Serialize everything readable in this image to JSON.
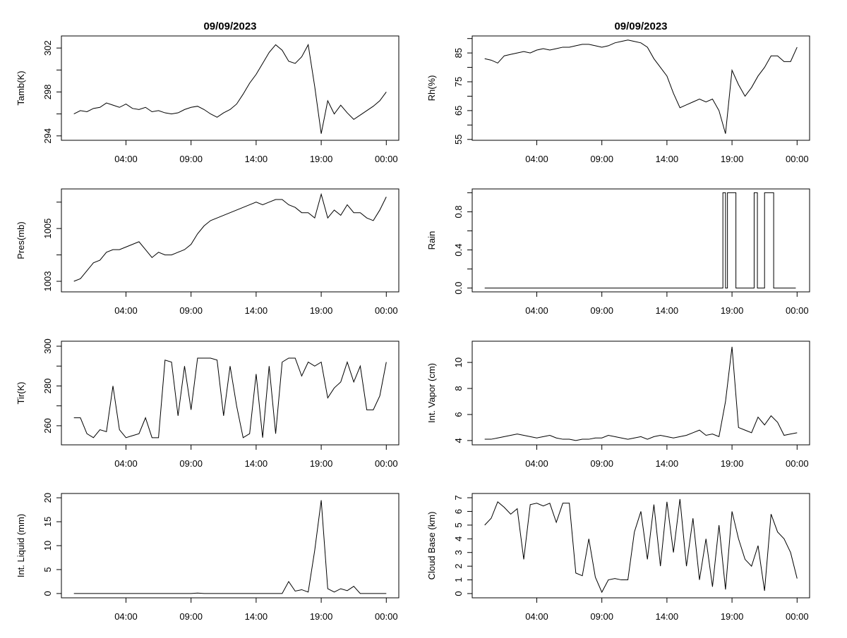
{
  "titles": [
    "09/09/2023",
    "09/09/2023"
  ],
  "x_tick_labels": [
    "04:00",
    "09:00",
    "14:00",
    "19:00",
    "00:00"
  ],
  "x_tick_values": [
    "04:00",
    "09:00",
    "14:00",
    "19:00",
    "24:00"
  ],
  "xlim": [
    "00:00",
    "24:00"
  ],
  "line_color": "#000000",
  "chart_data": [
    {
      "type": "line",
      "column": "left",
      "ylabel": "Tamb(K)",
      "ylim": [
        293.6,
        303.1
      ],
      "yticks": [
        294,
        296,
        298,
        300,
        302
      ],
      "ytick_labels": {
        "294": "294",
        "298": "298",
        "302": "302"
      },
      "x": [
        "00:00",
        "00:30",
        "01:00",
        "01:30",
        "02:00",
        "02:30",
        "03:00",
        "03:30",
        "04:00",
        "04:30",
        "05:00",
        "05:30",
        "06:00",
        "06:30",
        "07:00",
        "07:30",
        "08:00",
        "08:30",
        "09:00",
        "09:30",
        "10:00",
        "10:30",
        "11:00",
        "11:30",
        "12:00",
        "12:30",
        "13:00",
        "13:30",
        "14:00",
        "14:30",
        "15:00",
        "15:30",
        "16:00",
        "16:30",
        "17:00",
        "17:30",
        "18:00",
        "18:30",
        "19:00",
        "19:30",
        "20:00",
        "20:30",
        "21:00",
        "21:30",
        "22:00",
        "22:30",
        "23:00",
        "23:30",
        "24:00"
      ],
      "values": [
        296.0,
        296.3,
        296.2,
        296.5,
        296.6,
        297.0,
        296.8,
        296.6,
        296.9,
        296.5,
        296.4,
        296.6,
        296.2,
        296.3,
        296.1,
        296.0,
        296.1,
        296.4,
        296.6,
        296.7,
        296.4,
        296.0,
        295.7,
        296.1,
        296.4,
        296.9,
        297.8,
        298.8,
        299.6,
        300.6,
        301.6,
        302.3,
        301.8,
        300.8,
        300.6,
        301.2,
        302.3,
        298.5,
        294.2,
        297.2,
        296.0,
        296.8,
        296.1,
        295.5,
        295.9,
        296.3,
        296.7,
        297.2,
        298.0
      ]
    },
    {
      "type": "line",
      "column": "right",
      "ylabel": "Rh(%)",
      "ylim": [
        54.7,
        90.9
      ],
      "yticks": [
        55,
        60,
        65,
        70,
        75,
        80,
        85,
        90
      ],
      "ytick_labels": {
        "55": "55",
        "65": "65",
        "75": "75",
        "85": "85"
      },
      "x": [
        "00:00",
        "00:30",
        "01:00",
        "01:30",
        "02:00",
        "02:30",
        "03:00",
        "03:30",
        "04:00",
        "04:30",
        "05:00",
        "05:30",
        "06:00",
        "06:30",
        "07:00",
        "07:30",
        "08:00",
        "08:30",
        "09:00",
        "09:30",
        "10:00",
        "10:30",
        "11:00",
        "11:30",
        "12:00",
        "12:30",
        "13:00",
        "13:30",
        "14:00",
        "14:30",
        "15:00",
        "15:30",
        "16:00",
        "16:30",
        "17:00",
        "17:30",
        "18:00",
        "18:30",
        "19:00",
        "19:30",
        "20:00",
        "20:30",
        "21:00",
        "21:30",
        "22:00",
        "22:30",
        "23:00",
        "23:30",
        "24:00"
      ],
      "values": [
        83,
        82.5,
        81.5,
        84,
        84.5,
        85,
        85.5,
        85,
        86,
        86.5,
        86,
        86.5,
        87,
        87,
        87.5,
        88,
        88,
        87.5,
        87,
        87.5,
        88.5,
        89,
        89.5,
        89,
        88.5,
        87,
        83,
        80,
        77,
        71,
        66,
        67,
        68,
        69,
        68,
        69,
        65,
        57,
        79,
        74,
        70,
        73,
        77,
        80,
        84,
        84,
        82,
        82,
        87
      ]
    },
    {
      "type": "line",
      "column": "left",
      "ylabel": "Pres(mb)",
      "ylim": [
        1002.6,
        1006.5
      ],
      "yticks": [
        1003,
        1004,
        1005,
        1006
      ],
      "ytick_labels": {
        "1003": "1003",
        "1005": "1005"
      },
      "x": [
        "00:00",
        "00:30",
        "01:00",
        "01:30",
        "02:00",
        "02:30",
        "03:00",
        "03:30",
        "04:00",
        "04:30",
        "05:00",
        "05:30",
        "06:00",
        "06:30",
        "07:00",
        "07:30",
        "08:00",
        "08:30",
        "09:00",
        "09:30",
        "10:00",
        "10:30",
        "11:00",
        "11:30",
        "12:00",
        "12:30",
        "13:00",
        "13:30",
        "14:00",
        "14:30",
        "15:00",
        "15:30",
        "16:00",
        "16:30",
        "17:00",
        "17:30",
        "18:00",
        "18:30",
        "19:00",
        "19:30",
        "20:00",
        "20:30",
        "21:00",
        "21:30",
        "22:00",
        "22:30",
        "23:00",
        "23:30",
        "24:00"
      ],
      "values": [
        1003.0,
        1003.1,
        1003.4,
        1003.7,
        1003.8,
        1004.1,
        1004.2,
        1004.2,
        1004.3,
        1004.4,
        1004.5,
        1004.2,
        1003.9,
        1004.1,
        1004.0,
        1004.0,
        1004.1,
        1004.2,
        1004.4,
        1004.8,
        1005.1,
        1005.3,
        1005.4,
        1005.5,
        1005.6,
        1005.7,
        1005.8,
        1005.9,
        1006.0,
        1005.9,
        1006.0,
        1006.1,
        1006.1,
        1005.9,
        1005.8,
        1005.6,
        1005.6,
        1005.4,
        1006.3,
        1005.4,
        1005.7,
        1005.5,
        1005.9,
        1005.6,
        1005.6,
        1005.4,
        1005.3,
        1005.7,
        1006.2
      ]
    },
    {
      "type": "step",
      "column": "right",
      "ylabel": "Rain",
      "ylim": [
        -0.04,
        1.04
      ],
      "yticks": [
        0,
        0.2,
        0.4,
        0.6,
        0.8,
        1.0
      ],
      "ytick_labels": {
        "0": "0.0",
        "0.4": "0.4",
        "0.8": "0.8"
      },
      "x": [
        "00:00",
        "18:18",
        "18:30",
        "18:39",
        "19:18",
        "20:42",
        "20:57",
        "21:30",
        "22:12",
        "23:54"
      ],
      "values": [
        0,
        1,
        0,
        1,
        0,
        1,
        0,
        1,
        0,
        0
      ]
    },
    {
      "type": "line",
      "column": "left",
      "ylabel": "Tir(K)",
      "ylim": [
        250.4,
        302.5
      ],
      "yticks": [
        260,
        270,
        280,
        290,
        300
      ],
      "ytick_labels": {
        "260": "260",
        "280": "280",
        "300": "300"
      },
      "x": [
        "00:00",
        "00:30",
        "01:00",
        "01:30",
        "02:00",
        "02:30",
        "03:00",
        "03:30",
        "04:00",
        "04:30",
        "05:00",
        "05:30",
        "06:00",
        "06:30",
        "07:00",
        "07:30",
        "08:00",
        "08:30",
        "09:00",
        "09:30",
        "10:00",
        "10:30",
        "11:00",
        "11:30",
        "12:00",
        "12:30",
        "13:00",
        "13:30",
        "14:00",
        "14:30",
        "15:00",
        "15:30",
        "16:00",
        "16:30",
        "17:00",
        "17:30",
        "18:00",
        "18:30",
        "19:00",
        "19:30",
        "20:00",
        "20:30",
        "21:00",
        "21:30",
        "22:00",
        "22:30",
        "23:00",
        "23:30",
        "24:00"
      ],
      "values": [
        264,
        264,
        256,
        254,
        258,
        257,
        280,
        258,
        254,
        255,
        256,
        264,
        254,
        254,
        293,
        292,
        265,
        290,
        268,
        294,
        294,
        294,
        293,
        265,
        290,
        270,
        254,
        256,
        286,
        254,
        290,
        256,
        292,
        294,
        294,
        285,
        292,
        290,
        292,
        274,
        279,
        282,
        292,
        282,
        290,
        268,
        268,
        275,
        292
      ]
    },
    {
      "type": "line",
      "column": "right",
      "ylabel": "Int. Vapor (cm)",
      "ylim": [
        3.67,
        11.63
      ],
      "yticks": [
        4,
        6,
        8,
        10
      ],
      "ytick_labels": {
        "4": "4",
        "6": "6",
        "8": "8",
        "10": "10"
      },
      "x": [
        "00:00",
        "00:30",
        "01:00",
        "01:30",
        "02:00",
        "02:30",
        "03:00",
        "03:30",
        "04:00",
        "04:30",
        "05:00",
        "05:30",
        "06:00",
        "06:30",
        "07:00",
        "07:30",
        "08:00",
        "08:30",
        "09:00",
        "09:30",
        "10:00",
        "10:30",
        "11:00",
        "11:30",
        "12:00",
        "12:30",
        "13:00",
        "13:30",
        "14:00",
        "14:30",
        "15:00",
        "15:30",
        "16:00",
        "16:30",
        "17:00",
        "17:30",
        "18:00",
        "18:30",
        "19:00",
        "19:30",
        "20:00",
        "20:30",
        "21:00",
        "21:30",
        "22:00",
        "22:30",
        "23:00",
        "23:30",
        "24:00"
      ],
      "values": [
        4.1,
        4.1,
        4.2,
        4.3,
        4.4,
        4.5,
        4.4,
        4.3,
        4.2,
        4.3,
        4.4,
        4.2,
        4.1,
        4.1,
        4.0,
        4.1,
        4.1,
        4.2,
        4.2,
        4.4,
        4.3,
        4.2,
        4.1,
        4.2,
        4.3,
        4.1,
        4.3,
        4.4,
        4.3,
        4.2,
        4.3,
        4.4,
        4.6,
        4.8,
        4.4,
        4.5,
        4.3,
        7.0,
        11.2,
        5.0,
        4.8,
        4.6,
        5.8,
        5.2,
        5.9,
        5.4,
        4.4,
        4.5,
        4.6
      ]
    },
    {
      "type": "line",
      "column": "left",
      "ylabel": "Int. Liquid (mm)",
      "ylim": [
        -0.9,
        20.9
      ],
      "yticks": [
        0,
        5,
        10,
        15,
        20
      ],
      "ytick_labels": {
        "0": "0",
        "5": "5",
        "10": "10",
        "15": "15",
        "20": "20"
      },
      "x": [
        "00:00",
        "00:30",
        "01:00",
        "01:30",
        "02:00",
        "02:30",
        "03:00",
        "03:30",
        "04:00",
        "04:30",
        "05:00",
        "05:30",
        "06:00",
        "06:30",
        "07:00",
        "07:30",
        "08:00",
        "08:30",
        "09:00",
        "09:30",
        "10:00",
        "10:30",
        "11:00",
        "11:30",
        "12:00",
        "12:30",
        "13:00",
        "13:30",
        "14:00",
        "14:30",
        "15:00",
        "15:30",
        "16:00",
        "16:30",
        "17:00",
        "17:30",
        "18:00",
        "18:30",
        "19:00",
        "19:30",
        "20:00",
        "20:30",
        "21:00",
        "21:30",
        "22:00",
        "22:30",
        "23:00",
        "23:30",
        "24:00"
      ],
      "values": [
        0,
        0,
        0,
        0,
        0,
        0,
        0,
        0,
        0,
        0,
        0,
        0,
        0,
        0,
        0,
        0,
        0,
        0,
        0,
        0.1,
        0,
        0,
        0,
        0,
        0,
        0,
        0,
        0,
        0,
        0,
        0,
        0,
        0,
        2.5,
        0.5,
        0.8,
        0.3,
        9,
        19.5,
        1,
        0.3,
        1,
        0.6,
        1.5,
        0,
        0,
        0,
        0,
        0
      ]
    },
    {
      "type": "line",
      "column": "right",
      "ylabel": "Cloud Base (km)",
      "ylim": [
        -0.31,
        7.31
      ],
      "yticks": [
        0,
        1,
        2,
        3,
        4,
        5,
        6,
        7
      ],
      "ytick_labels": {
        "0": "0",
        "1": "1",
        "2": "2",
        "3": "3",
        "4": "4",
        "5": "5",
        "6": "6",
        "7": "7"
      },
      "x": [
        "00:00",
        "00:30",
        "01:00",
        "01:30",
        "02:00",
        "02:30",
        "03:00",
        "03:30",
        "04:00",
        "04:30",
        "05:00",
        "05:30",
        "06:00",
        "06:30",
        "07:00",
        "07:30",
        "08:00",
        "08:30",
        "09:00",
        "09:30",
        "10:00",
        "10:30",
        "11:00",
        "11:30",
        "12:00",
        "12:30",
        "13:00",
        "13:30",
        "14:00",
        "14:30",
        "15:00",
        "15:30",
        "16:00",
        "16:30",
        "17:00",
        "17:30",
        "18:00",
        "18:30",
        "19:00",
        "19:30",
        "20:00",
        "20:30",
        "21:00",
        "21:30",
        "22:00",
        "22:30",
        "23:00",
        "23:30",
        "24:00"
      ],
      "values": [
        5.0,
        5.5,
        6.7,
        6.3,
        5.8,
        6.2,
        2.5,
        6.5,
        6.6,
        6.4,
        6.6,
        5.2,
        6.6,
        6.6,
        1.5,
        1.3,
        4.0,
        1.2,
        0.1,
        1.0,
        1.1,
        1.0,
        1.0,
        4.5,
        6.0,
        2.5,
        6.5,
        2.0,
        6.7,
        3.0,
        6.9,
        2.0,
        5.5,
        1.0,
        4.0,
        0.5,
        5.0,
        0.3,
        6.0,
        4.0,
        2.5,
        2.0,
        3.5,
        0.2,
        5.8,
        4.5,
        4.0,
        3.0,
        1.1
      ]
    }
  ]
}
